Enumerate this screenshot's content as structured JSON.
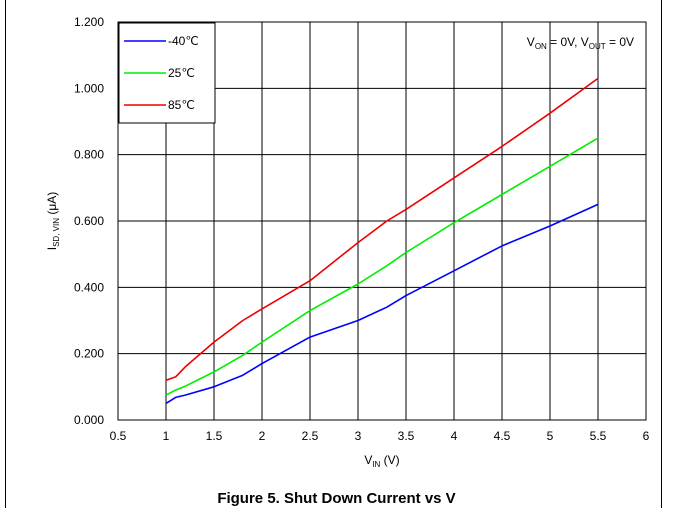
{
  "chart_data": {
    "type": "line",
    "x": [
      1.0,
      1.1,
      1.2,
      1.5,
      1.8,
      2.0,
      2.5,
      3.0,
      3.3,
      3.5,
      4.0,
      4.5,
      5.0,
      5.5
    ],
    "series": [
      {
        "name": "-40℃",
        "color": "#0000ff",
        "values": [
          0.05,
          0.068,
          0.075,
          0.1,
          0.135,
          0.17,
          0.25,
          0.3,
          0.34,
          0.375,
          0.45,
          0.525,
          0.585,
          0.65
        ]
      },
      {
        "name": "25℃",
        "color": "#00ee00",
        "values": [
          0.075,
          0.09,
          0.102,
          0.145,
          0.195,
          0.235,
          0.33,
          0.41,
          0.465,
          0.505,
          0.595,
          0.68,
          0.765,
          0.85
        ]
      },
      {
        "name": "85℃",
        "color": "#ee0000",
        "values": [
          0.12,
          0.13,
          0.16,
          0.235,
          0.3,
          0.335,
          0.42,
          0.535,
          0.6,
          0.635,
          0.73,
          0.825,
          0.925,
          1.03
        ]
      }
    ],
    "xlim": [
      0.5,
      6.0
    ],
    "ylim": [
      0.0,
      1.2
    ],
    "xticks": [
      "0.5",
      "1",
      "1.5",
      "2",
      "2.5",
      "3",
      "3.5",
      "4",
      "4.5",
      "5",
      "5.5",
      "6"
    ],
    "yticks": [
      "0.000",
      "0.200",
      "0.400",
      "0.600",
      "0.800",
      "1.000",
      "1.200"
    ],
    "xlabel": {
      "main": "V",
      "sub": "IN",
      "tail": " (V)"
    },
    "ylabel": {
      "main": "I",
      "sub": "SD, VIN",
      "tail": " (μA)"
    },
    "annotation": {
      "p1": "V",
      "s1": "ON",
      "t1": " = 0V, V",
      "s2": "OUT",
      "t2": " = 0V"
    },
    "grid": true,
    "legend_position": "top-left",
    "caption": "Figure 5. Shut Down Current vs V"
  }
}
